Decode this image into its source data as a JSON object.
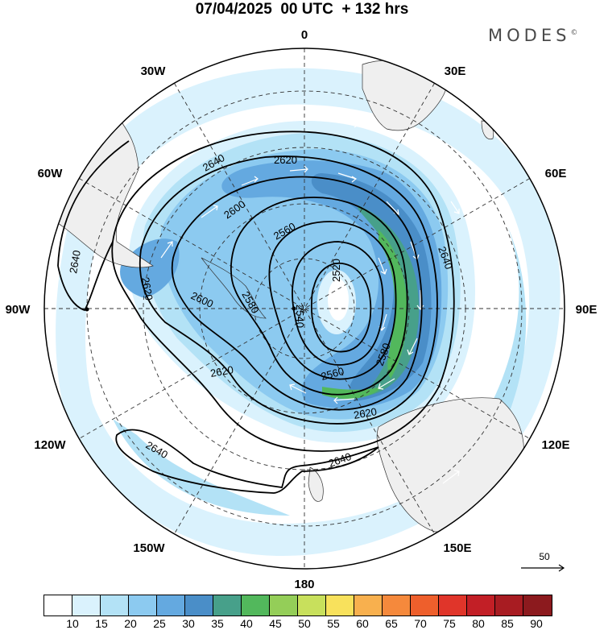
{
  "header": {
    "title": "07/04/2025  00 UTC  + 132 hrs",
    "brand": "MODES",
    "brand_mark": "©"
  },
  "map": {
    "projection": "south-polar-stereographic",
    "longitude_labels": [
      "0",
      "30E",
      "60E",
      "90E",
      "120E",
      "150E",
      "180",
      "150W",
      "120W",
      "90W",
      "60W",
      "30W"
    ],
    "contour_labels": [
      "2640",
      "2620",
      "2600",
      "2580",
      "2560",
      "2540",
      "2520",
      "2640",
      "2620",
      "2640",
      "2640",
      "2620",
      "2600",
      "2580",
      "2560",
      "2620",
      "2640"
    ],
    "scale_vector_label": "50",
    "land_color": "#efefef",
    "contour_color": "#000000"
  },
  "colorbar": {
    "ticks": [
      "10",
      "15",
      "20",
      "25",
      "30",
      "35",
      "40",
      "45",
      "50",
      "55",
      "60",
      "65",
      "70",
      "75",
      "80",
      "85",
      "90"
    ],
    "colors": [
      "#ffffff",
      "#daf2fd",
      "#b3e2f6",
      "#8ccaf0",
      "#64a9e0",
      "#4a8ec8",
      "#47a08a",
      "#52b85c",
      "#94ce58",
      "#c8e05c",
      "#f8e15c",
      "#f8b04e",
      "#f5893c",
      "#ee5f2c",
      "#e0352a",
      "#c21f26",
      "#a81c22",
      "#8c1a1e"
    ]
  }
}
